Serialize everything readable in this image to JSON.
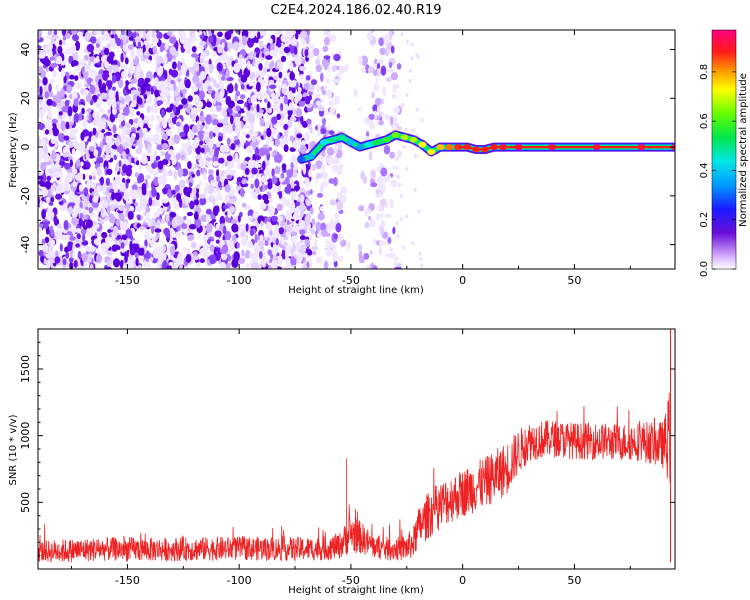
{
  "title": "C2E4.2024.186.02.40.R19",
  "colors": {
    "snr_line": "#ee2222",
    "ridge_core": "#ff1a1a",
    "ridge_edge": "#00ee66",
    "noise_dark": "#6a10e8",
    "noise_light": "#dcc6ff"
  },
  "chart_data": [
    {
      "type": "heatmap",
      "xlabel": "Height of straight line (km)",
      "ylabel": "Frequency (Hz)",
      "xlim": [
        -190,
        95
      ],
      "ylim": [
        -50,
        48
      ],
      "xticks": [
        -150,
        -100,
        -50,
        0,
        50
      ],
      "yticks": [
        -40,
        -20,
        0,
        20,
        40
      ],
      "xtick_labels": [
        "-150",
        "-100",
        "-50",
        "0",
        "50"
      ],
      "ytick_labels": [
        "-40",
        "-20",
        "0",
        "20",
        "40"
      ],
      "colorbar": {
        "label": "Normalized spectral amplitude",
        "range": [
          0.0,
          0.97
        ],
        "ticks": [
          0.0,
          0.2,
          0.4,
          0.6,
          0.8
        ],
        "tick_labels": [
          "0.0",
          "0.2",
          "0.4",
          "0.6",
          "0.8"
        ],
        "colormap": "rainbow (white-violet-blue-cyan-green-yellow-red-magenta)"
      },
      "regions": [
        {
          "x_range": [
            -190,
            -68
          ],
          "description": "broadband noise",
          "amplitude": 0.25
        },
        {
          "x_range": [
            -68,
            -28
          ],
          "description": "patchy noise",
          "amplitude": 0.15
        },
        {
          "x_range": [
            -28,
            95
          ],
          "description": "empty",
          "amplitude": 0.0
        }
      ],
      "ridge": {
        "x": [
          -72,
          -68,
          -62,
          -58,
          -54,
          -50,
          -46,
          -42,
          -38,
          -34,
          -30,
          -26,
          -22,
          -18,
          -14,
          -10,
          -6,
          -2,
          2,
          6,
          10,
          14,
          18,
          25,
          40,
          60,
          80,
          95
        ],
        "y": [
          -5,
          -4,
          2,
          3,
          4,
          2,
          0,
          1,
          2,
          3,
          5,
          4,
          3,
          1,
          -2,
          0,
          0,
          0,
          0,
          -1,
          -1,
          0,
          0,
          0,
          0,
          0,
          0,
          0
        ],
        "amplitude": [
          0.3,
          0.4,
          0.45,
          0.5,
          0.5,
          0.4,
          0.35,
          0.45,
          0.55,
          0.6,
          0.65,
          0.7,
          0.7,
          0.75,
          0.75,
          0.8,
          0.85,
          0.9,
          0.9,
          0.9,
          0.9,
          0.92,
          0.95,
          0.97,
          0.97,
          0.97,
          0.97,
          0.97
        ]
      }
    },
    {
      "type": "line",
      "xlabel": "Height of straight line (km)",
      "ylabel": "SNR (10 * v/v)",
      "xlim": [
        -190,
        95
      ],
      "ylim": [
        0,
        1800
      ],
      "xticks": [
        -150,
        -100,
        -50,
        0,
        50
      ],
      "yticks": [
        500,
        1000,
        1500
      ],
      "xtick_labels": [
        "-150",
        "-100",
        "-50",
        "0",
        "50"
      ],
      "ytick_labels": [
        "500",
        "1000",
        "1500"
      ],
      "series": [
        {
          "name": "SNR",
          "x": [
            -190,
            -180,
            -160,
            -140,
            -120,
            -100,
            -80,
            -70,
            -60,
            -55,
            -50,
            -45,
            -40,
            -35,
            -30,
            -25,
            -22,
            -20,
            -15,
            -10,
            -5,
            0,
            5,
            10,
            15,
            20,
            25,
            30,
            40,
            50,
            60,
            70,
            80,
            90,
            93
          ],
          "y": [
            130,
            135,
            150,
            145,
            150,
            155,
            150,
            150,
            155,
            175,
            270,
            230,
            170,
            150,
            150,
            160,
            200,
            300,
            410,
            480,
            530,
            570,
            610,
            650,
            700,
            760,
            880,
            960,
            980,
            960,
            960,
            950,
            960,
            930,
            1000
          ],
          "noise_amplitude": [
            80,
            90,
            90,
            90,
            90,
            90,
            90,
            90,
            90,
            100,
            150,
            120,
            90,
            90,
            90,
            100,
            120,
            150,
            180,
            180,
            180,
            180,
            190,
            190,
            200,
            200,
            170,
            150,
            140,
            140,
            140,
            140,
            150,
            180,
            400
          ]
        }
      ]
    }
  ]
}
